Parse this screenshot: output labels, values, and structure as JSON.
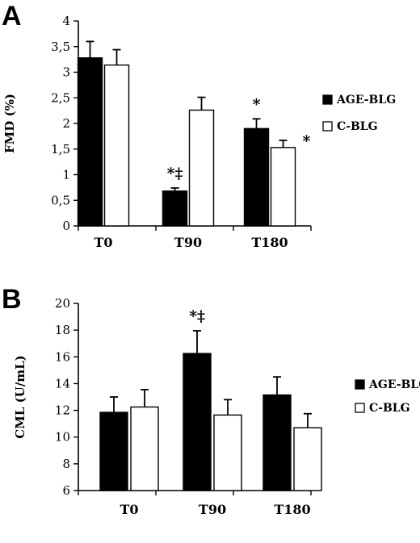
{
  "chart_data": [
    {
      "type": "bar",
      "panel_label": "A",
      "categories": [
        "T0",
        "T90",
        "T180"
      ],
      "series": [
        {
          "name": "AGE-BLG",
          "values": [
            3.28,
            0.68,
            1.9
          ],
          "errors": [
            0.32,
            0.06,
            0.19
          ],
          "color": "#000000"
        },
        {
          "name": "C-BLG",
          "values": [
            3.14,
            2.26,
            1.53
          ],
          "errors": [
            0.3,
            0.25,
            0.14
          ],
          "color": "#ffffff"
        }
      ],
      "annotations": [
        {
          "category": 1,
          "series": 0,
          "text": "*‡"
        },
        {
          "category": 2,
          "series": 0,
          "text": "*"
        },
        {
          "category": 2,
          "series": 1,
          "text": "*"
        }
      ],
      "xlabel": "",
      "ylabel": "FMD (%)",
      "ylim": [
        0,
        4
      ],
      "yticks": [
        "0",
        "0,5",
        "1",
        "1,5",
        "2",
        "2,5",
        "3",
        "3,5",
        "4"
      ],
      "legend_position": "right",
      "grid": false
    },
    {
      "type": "bar",
      "panel_label": "B",
      "categories": [
        "T0",
        "T90",
        "T180"
      ],
      "series": [
        {
          "name": "AGE-BLG",
          "values": [
            11.85,
            16.25,
            13.15
          ],
          "errors": [
            1.15,
            1.7,
            1.35
          ],
          "color": "#000000"
        },
        {
          "name": "C-BLG",
          "values": [
            12.25,
            11.65,
            10.7
          ],
          "errors": [
            1.3,
            1.15,
            1.05
          ],
          "color": "#ffffff"
        }
      ],
      "annotations": [
        {
          "category": 1,
          "series": 0,
          "text": "*‡"
        }
      ],
      "xlabel": "",
      "ylabel": "CML (U/mL)",
      "ylim": [
        6,
        20
      ],
      "yticks": [
        "6",
        "8",
        "10",
        "12",
        "14",
        "16",
        "18",
        "20"
      ],
      "legend_position": "right",
      "grid": false
    }
  ]
}
